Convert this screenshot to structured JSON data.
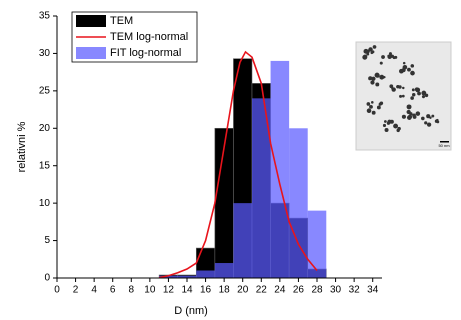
{
  "chart_data": {
    "type": "histogram",
    "xlabel": "D (nm)",
    "ylabel": "relativni %",
    "bins": [
      11,
      13,
      15,
      17,
      19,
      21,
      23,
      25,
      27,
      29
    ],
    "series": [
      {
        "name": "TEM",
        "color": "#000000",
        "values": [
          0.4,
          0.4,
          4,
          20,
          29.3,
          26,
          10,
          8,
          1.2
        ]
      },
      {
        "name": "FIT log-normal",
        "color": "#5a5aff",
        "values": [
          0.3,
          0.3,
          1,
          2,
          10,
          24,
          29,
          20,
          9
        ]
      }
    ],
    "curve": {
      "name": "TEM log-normal",
      "color": "#e8141c",
      "x": [
        11,
        12,
        13,
        14,
        15,
        16,
        17,
        18,
        19,
        19.7,
        20.3,
        21,
        22,
        23,
        24,
        25,
        26,
        27,
        28
      ],
      "values": [
        0.05,
        0.3,
        0.7,
        1.2,
        2,
        5,
        10,
        17.5,
        25,
        28.8,
        30.2,
        29.5,
        26,
        18,
        12.5,
        7.5,
        4.5,
        2.5,
        1
      ]
    },
    "xlim": [
      0,
      35
    ],
    "xticks": [
      0,
      2,
      4,
      6,
      8,
      10,
      12,
      14,
      16,
      18,
      20,
      22,
      24,
      26,
      28,
      30,
      32,
      34
    ],
    "ylim": [
      0,
      35
    ],
    "yticks": [
      0,
      5,
      10,
      15,
      20,
      25,
      30,
      35
    ],
    "legend": "upper left"
  },
  "inset": {
    "scale_label": "50 nm"
  }
}
